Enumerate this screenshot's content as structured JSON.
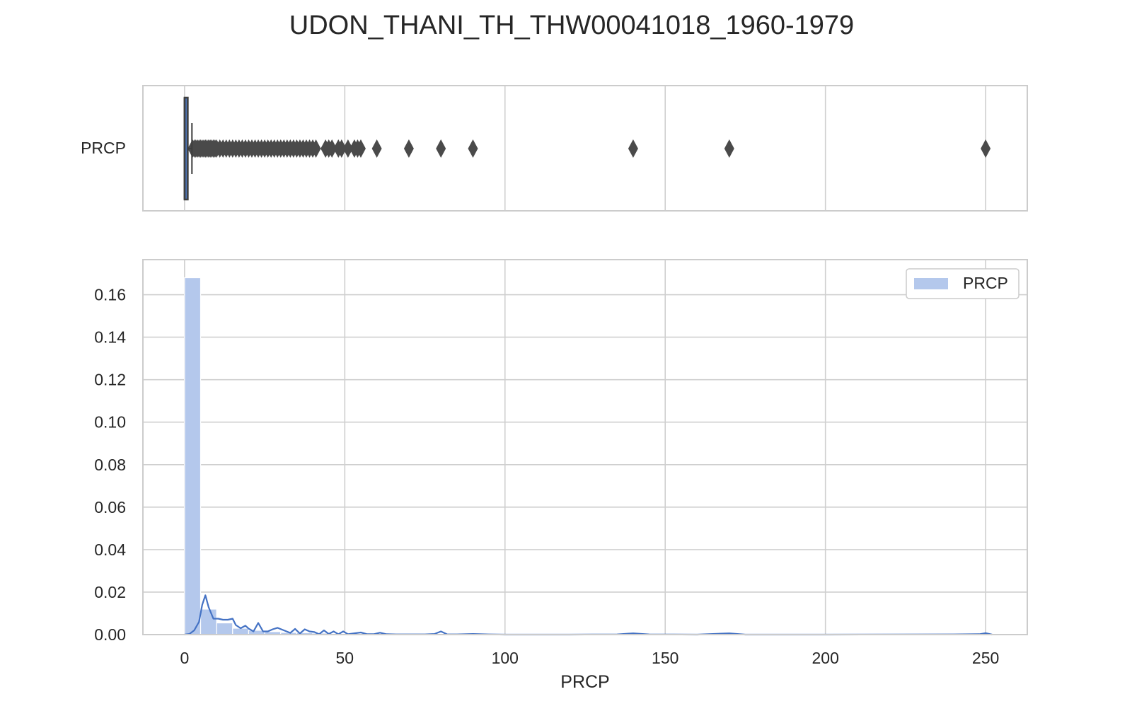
{
  "figure": {
    "title": "UDON_THANI_TH_THW00041018_1960-1979"
  },
  "colors": {
    "grid": "#cfcfcf",
    "spine": "#cccccc",
    "box_fill": "#4c72b0",
    "box_edge": "#3f3f3f",
    "flier": "#4a4a4a",
    "hist_fill": "#b4c8ec",
    "kde_line": "#4472c4",
    "text": "#262626"
  },
  "chart_data": [
    {
      "type": "box",
      "panel": "top",
      "ytick_label": "PRCP",
      "xlim": [
        -13,
        263
      ],
      "xticks": [
        0,
        50,
        100,
        150,
        200,
        250
      ],
      "box": {
        "q1": 0,
        "median": 0,
        "q3": 1.0,
        "whisker_low": 0,
        "whisker_high": 2.3
      },
      "outliers": [
        2.5,
        3,
        3.5,
        4,
        4.5,
        5,
        5.5,
        6,
        6.5,
        7,
        7.5,
        8,
        8.5,
        9,
        9.5,
        10,
        11,
        12,
        13,
        14,
        15,
        16,
        17,
        18,
        19,
        20,
        21,
        22,
        23,
        24,
        25,
        26,
        27,
        28,
        29,
        30,
        31,
        32,
        33,
        34,
        35,
        36,
        37,
        38,
        39,
        40,
        41,
        44,
        45,
        46,
        48,
        49,
        51,
        53,
        54,
        55,
        60,
        70,
        80,
        90,
        140,
        170,
        250
      ]
    },
    {
      "type": "histogram",
      "panel": "bottom",
      "xlabel": "PRCP",
      "ylabel": "",
      "xlim": [
        -13,
        263
      ],
      "ylim": [
        0,
        0.1765
      ],
      "xticks": [
        0,
        50,
        100,
        150,
        200,
        250
      ],
      "yticks": [
        0.0,
        0.02,
        0.04,
        0.06,
        0.08,
        0.1,
        0.12,
        0.14,
        0.16
      ],
      "ytick_labels": [
        "0.00",
        "0.02",
        "0.04",
        "0.06",
        "0.08",
        "0.10",
        "0.12",
        "0.14",
        "0.16"
      ],
      "legend": {
        "label": "PRCP",
        "position": "top-right"
      },
      "bin_width": 5,
      "bin_start": 0,
      "bin_heights": [
        0.168,
        0.012,
        0.0055,
        0.003,
        0.002,
        0.0014,
        0.001,
        0.0009,
        0.0007,
        0.0005,
        0.0005,
        0.0003,
        0.0002,
        0.0001,
        0.0001,
        0.0001,
        0.0001,
        0.0,
        0.0,
        0.0001,
        0.0,
        0.0,
        0.0,
        0.0,
        0.0,
        0.0,
        0.0,
        0.0,
        0.0,
        0.0,
        0.0,
        0.0,
        0.0,
        0.0,
        0.0,
        0.0,
        0.0,
        0.0,
        0.0,
        0.0,
        0.0,
        0.0,
        0.0,
        0.0,
        0.0,
        0.0,
        0.0,
        0.0,
        0.0,
        0.0
      ],
      "kde": {
        "x": [
          0,
          1.5,
          3,
          4.5,
          5.5,
          6.5,
          7.5,
          9,
          10.5,
          12,
          13.5,
          15,
          16,
          17.5,
          19,
          20,
          21.5,
          23,
          24.5,
          26,
          27.5,
          29,
          31,
          33,
          34.5,
          36,
          37.5,
          39,
          40.5,
          42,
          43.5,
          45,
          46.5,
          48,
          49.5,
          51,
          52.5,
          55,
          57,
          59,
          61,
          63,
          66,
          70,
          75,
          78,
          80,
          82,
          85,
          90,
          95,
          100,
          120,
          135,
          140,
          145,
          160,
          170,
          175,
          200,
          240,
          248,
          250,
          252
        ],
        "y": [
          0,
          0.0003,
          0.002,
          0.006,
          0.014,
          0.0185,
          0.013,
          0.0075,
          0.0075,
          0.007,
          0.007,
          0.0075,
          0.0045,
          0.003,
          0.0042,
          0.0028,
          0.0015,
          0.0055,
          0.0015,
          0.0015,
          0.0025,
          0.0032,
          0.002,
          0.0008,
          0.0027,
          0.0005,
          0.0025,
          0.0015,
          0.0012,
          0.0002,
          0.002,
          0.0003,
          0.0015,
          0.0002,
          0.0015,
          0.0002,
          0.0005,
          0.001,
          0.0002,
          0.0002,
          0.0009,
          0.0002,
          0.0001,
          0.0001,
          0.0001,
          0.0003,
          0.0015,
          0.0001,
          0.0001,
          0.0003,
          0.0001,
          0.0,
          0.0,
          0.0001,
          0.0006,
          0.0001,
          0.0,
          0.0006,
          0.0,
          0.0,
          0.0001,
          0.0002,
          0.0007,
          0.0
        ]
      }
    }
  ]
}
